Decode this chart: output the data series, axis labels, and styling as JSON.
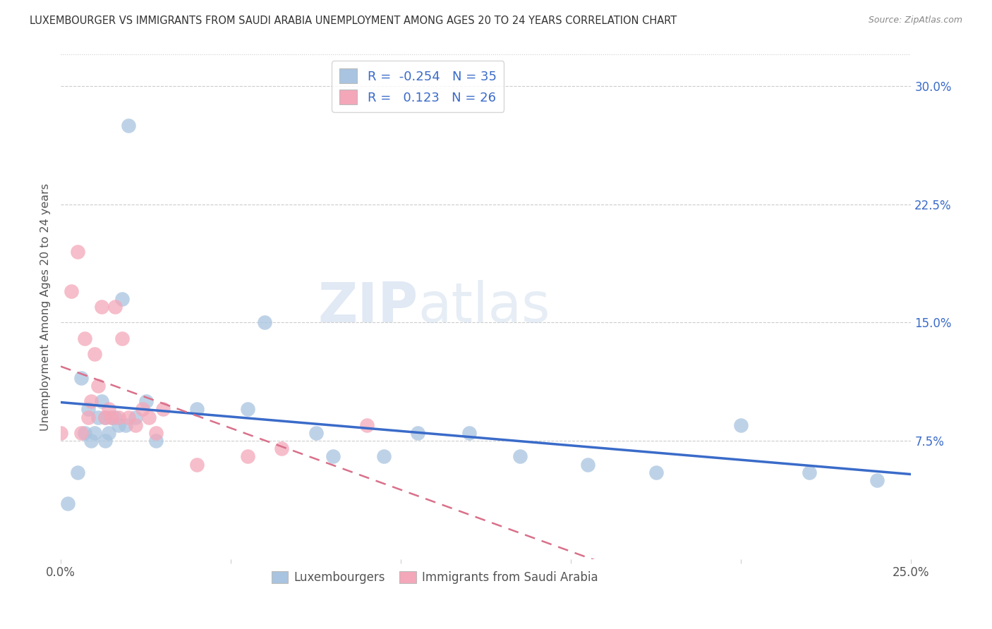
{
  "title": "LUXEMBOURGER VS IMMIGRANTS FROM SAUDI ARABIA UNEMPLOYMENT AMONG AGES 20 TO 24 YEARS CORRELATION CHART",
  "source": "Source: ZipAtlas.com",
  "ylabel": "Unemployment Among Ages 20 to 24 years",
  "xlim": [
    0.0,
    0.25
  ],
  "ylim": [
    0.0,
    0.32
  ],
  "xticks": [
    0.0,
    0.05,
    0.1,
    0.15,
    0.2,
    0.25
  ],
  "xtick_labels": [
    "0.0%",
    "",
    "",
    "",
    "",
    "25.0%"
  ],
  "yticks_right": [
    0.075,
    0.15,
    0.225,
    0.3
  ],
  "ytick_right_labels": [
    "7.5%",
    "15.0%",
    "22.5%",
    "30.0%"
  ],
  "legend_R1": "-0.254",
  "legend_N1": "35",
  "legend_R2": "0.123",
  "legend_N2": "26",
  "lux_color": "#a8c4e0",
  "saudi_color": "#f4a7b9",
  "trend_lux_color": "#3a6bc9",
  "trend_saudi_color": "#d9708a",
  "background_color": "#ffffff",
  "lux_x": [
    0.002,
    0.005,
    0.006,
    0.007,
    0.008,
    0.009,
    0.01,
    0.011,
    0.012,
    0.013,
    0.013,
    0.014,
    0.015,
    0.016,
    0.017,
    0.018,
    0.019,
    0.02,
    0.022,
    0.025,
    0.028,
    0.04,
    0.055,
    0.06,
    0.075,
    0.08,
    0.095,
    0.105,
    0.12,
    0.135,
    0.155,
    0.175,
    0.2,
    0.22,
    0.24
  ],
  "lux_y": [
    0.035,
    0.055,
    0.115,
    0.08,
    0.095,
    0.075,
    0.08,
    0.09,
    0.1,
    0.09,
    0.075,
    0.08,
    0.09,
    0.09,
    0.085,
    0.165,
    0.085,
    0.275,
    0.09,
    0.1,
    0.075,
    0.095,
    0.095,
    0.15,
    0.08,
    0.065,
    0.065,
    0.08,
    0.08,
    0.065,
    0.06,
    0.055,
    0.085,
    0.055,
    0.05
  ],
  "saudi_x": [
    0.0,
    0.003,
    0.005,
    0.006,
    0.007,
    0.008,
    0.009,
    0.01,
    0.011,
    0.012,
    0.013,
    0.014,
    0.015,
    0.016,
    0.017,
    0.018,
    0.02,
    0.022,
    0.024,
    0.026,
    0.028,
    0.03,
    0.04,
    0.055,
    0.065,
    0.09
  ],
  "saudi_y": [
    0.08,
    0.17,
    0.195,
    0.08,
    0.14,
    0.09,
    0.1,
    0.13,
    0.11,
    0.16,
    0.09,
    0.095,
    0.09,
    0.16,
    0.09,
    0.14,
    0.09,
    0.085,
    0.095,
    0.09,
    0.08,
    0.095,
    0.06,
    0.065,
    0.07,
    0.085
  ]
}
